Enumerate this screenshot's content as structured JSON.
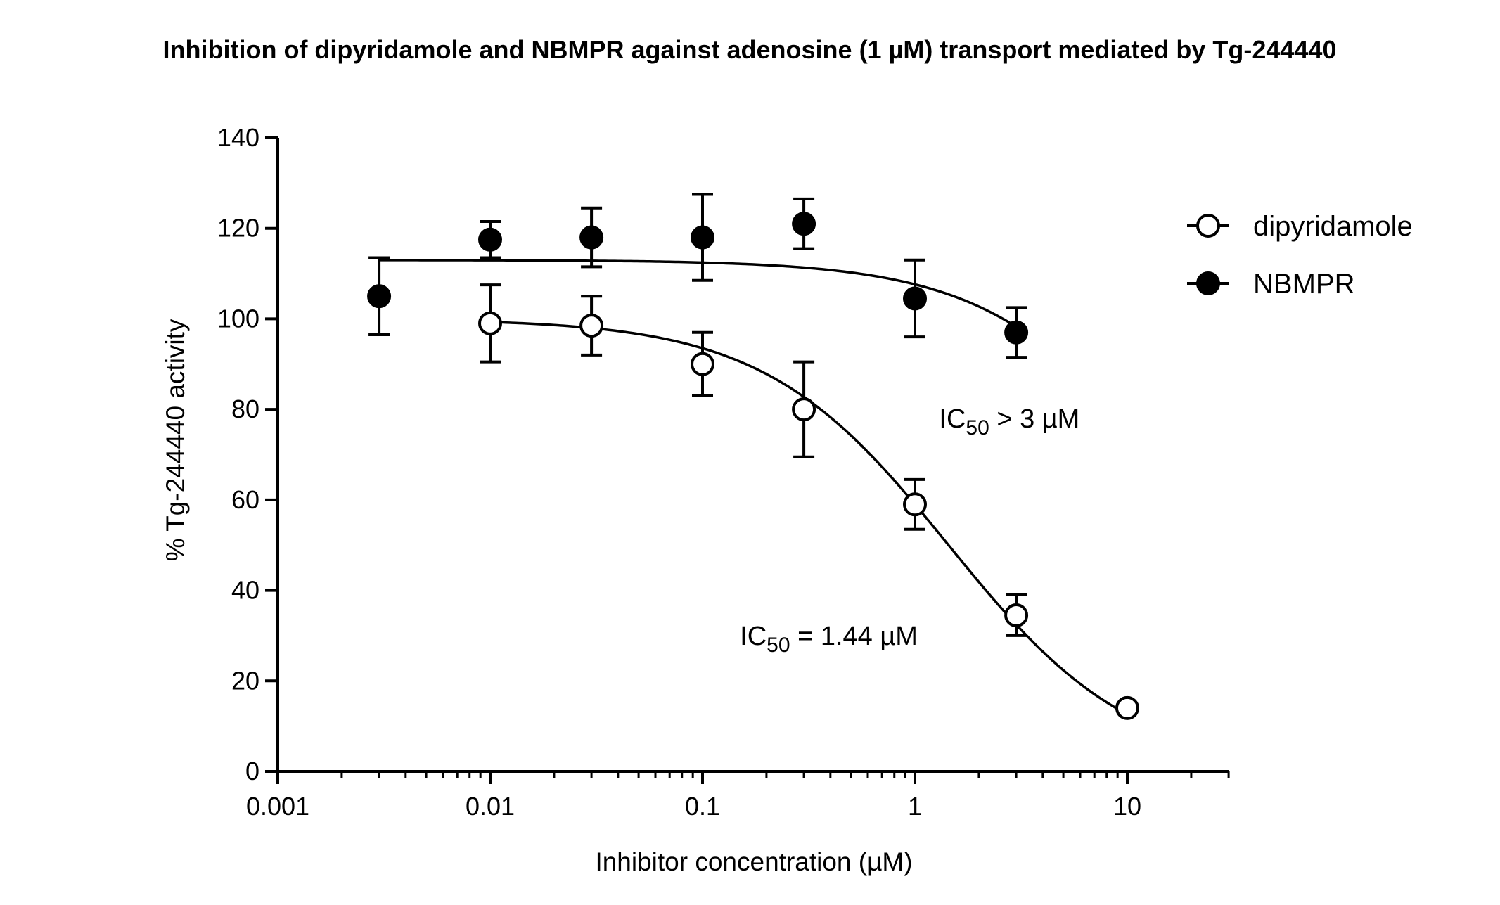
{
  "chart_data": {
    "type": "scatter",
    "title": "Inhibition of dipyridamole and NBMPR against adenosine (1 µM) transport mediated by Tg-244440",
    "xlabel": "Inhibitor concentration (µM)",
    "ylabel": "% Tg-244440 activity",
    "x_scale": "log",
    "xlim": [
      0.001,
      30
    ],
    "ylim": [
      0,
      140
    ],
    "x_ticks": [
      0.001,
      0.01,
      0.1,
      1,
      10
    ],
    "x_tick_labels": [
      "0.001",
      "0.01",
      "0.1",
      "1",
      "10"
    ],
    "y_ticks": [
      0,
      20,
      40,
      60,
      80,
      100,
      120,
      140
    ],
    "y_tick_labels": [
      "0",
      "20",
      "40",
      "60",
      "80",
      "100",
      "120",
      "140"
    ],
    "grid": false,
    "legend_position": "top-right",
    "series": [
      {
        "name": "dipyridamole",
        "marker": "open-circle",
        "x": [
          0.01,
          0.03,
          0.1,
          0.3,
          1,
          3,
          10
        ],
        "y": [
          99,
          98.5,
          90,
          80,
          59,
          34.5,
          14
        ],
        "err": [
          8.5,
          6.5,
          7,
          10.5,
          5.5,
          4.5,
          0
        ],
        "fit": {
          "type": "sigmoid",
          "top": 100,
          "bottom": 0,
          "ic50": 1.44,
          "hill": 1
        }
      },
      {
        "name": "NBMPR",
        "marker": "filled-circle",
        "x": [
          0.003,
          0.01,
          0.03,
          0.1,
          0.3,
          1,
          3
        ],
        "y": [
          105,
          117.5,
          118,
          118,
          121,
          104.5,
          97
        ],
        "err": [
          8.5,
          4,
          6.5,
          9.5,
          5.5,
          8.5,
          5.5
        ],
        "fit": {
          "type": "sigmoid",
          "top": 113,
          "bottom": 0,
          "ic50": 20,
          "hill": 1
        }
      }
    ],
    "annotations": [
      {
        "label_main": "IC",
        "label_sub": "50",
        "label_rest": " > 3 µM",
        "x": 1.3,
        "y": 76
      },
      {
        "label_main": "IC",
        "label_sub": "50",
        "label_rest": " = 1.44 µM",
        "x": 0.15,
        "y": 28
      }
    ]
  }
}
